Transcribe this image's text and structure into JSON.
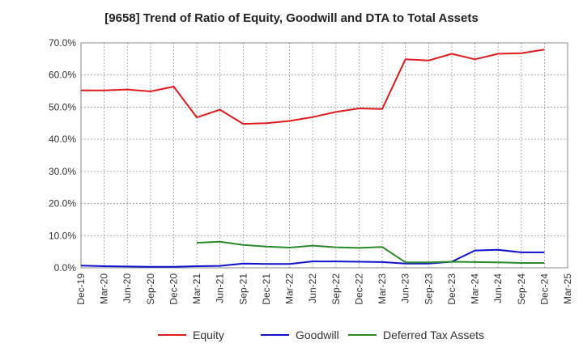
{
  "chart_data": {
    "type": "line",
    "title": "[9658]  Trend of Ratio of Equity, Goodwill and DTA to Total Assets",
    "xlabel": "",
    "ylabel": "",
    "ylim": [
      0,
      70
    ],
    "y_ticks": [
      "0.0%",
      "10.0%",
      "20.0%",
      "30.0%",
      "40.0%",
      "50.0%",
      "60.0%",
      "70.0%"
    ],
    "x_ticks": [
      "Dec-19",
      "Mar-20",
      "Jun-20",
      "Sep-20",
      "Dec-20",
      "Mar-21",
      "Jun-21",
      "Sep-21",
      "Dec-21",
      "Mar-22",
      "Jun-22",
      "Sep-22",
      "Dec-22",
      "Mar-23",
      "Jun-23",
      "Sep-23",
      "Dec-23",
      "Mar-24",
      "Jun-24",
      "Sep-24",
      "Dec-24",
      "Mar-25"
    ],
    "grid": true,
    "legend_position": "bottom",
    "series": [
      {
        "name": "Equity",
        "color": "#e31a1c",
        "values": [
          55.2,
          55.2,
          55.5,
          54.9,
          56.4,
          46.8,
          49.2,
          44.8,
          45.0,
          45.7,
          46.9,
          48.5,
          49.6,
          49.4,
          64.9,
          64.5,
          66.6,
          64.9,
          66.6,
          66.8,
          67.9,
          null
        ]
      },
      {
        "name": "Goodwill",
        "color": "#1010d0",
        "values": [
          0.7,
          0.5,
          0.4,
          0.3,
          0.3,
          0.5,
          0.6,
          1.3,
          1.2,
          1.2,
          2.0,
          2.0,
          1.9,
          1.8,
          1.3,
          1.3,
          1.9,
          5.4,
          5.6,
          4.8,
          4.8,
          null
        ]
      },
      {
        "name": "Deferred Tax Assets",
        "color": "#2a8a2a",
        "values": [
          null,
          null,
          null,
          null,
          null,
          7.8,
          8.1,
          7.1,
          6.6,
          6.3,
          6.9,
          6.4,
          6.2,
          6.5,
          1.7,
          1.7,
          1.9,
          1.8,
          1.7,
          1.5,
          1.5,
          null
        ]
      }
    ]
  }
}
